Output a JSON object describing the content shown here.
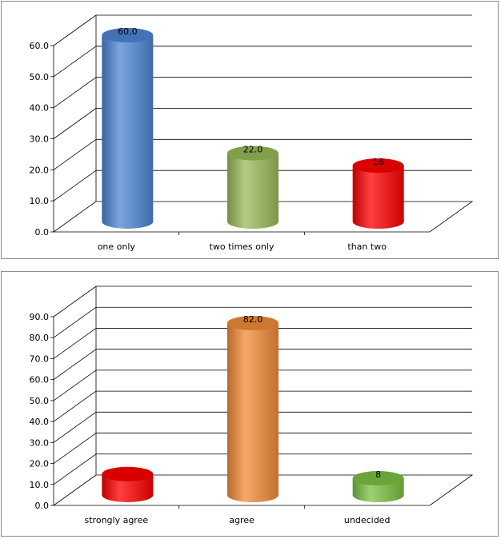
{
  "chart_data": [
    {
      "type": "bar",
      "categories": [
        "one only",
        "two times only",
        "than two"
      ],
      "values": [
        60.0,
        22.0,
        18
      ],
      "data_labels": [
        "60.0",
        "22.0",
        "18"
      ],
      "yticks": [
        "0.0",
        "10.0",
        "20.0",
        "30.0",
        "40.0",
        "50.0",
        "60.0"
      ],
      "ylim": [
        0,
        60
      ],
      "colors": [
        "#4f87d6",
        "#9bbb59",
        "#ff0000"
      ],
      "grid": true,
      "style": "3d-cylinder"
    },
    {
      "type": "bar",
      "categories": [
        "strongly agree",
        "agree",
        "undecided"
      ],
      "values": [
        10,
        82.0,
        8
      ],
      "data_labels": [
        "",
        "82.0",
        "8"
      ],
      "yticks": [
        "0.0",
        "10.0",
        "20.0",
        "30.0",
        "40.0",
        "50.0",
        "60.0",
        "70.0",
        "80.0",
        "90.0"
      ],
      "ylim": [
        0,
        90
      ],
      "colors": [
        "#ff0000",
        "#f28c38",
        "#7cc242"
      ],
      "grid": true,
      "style": "3d-cylinder"
    }
  ]
}
